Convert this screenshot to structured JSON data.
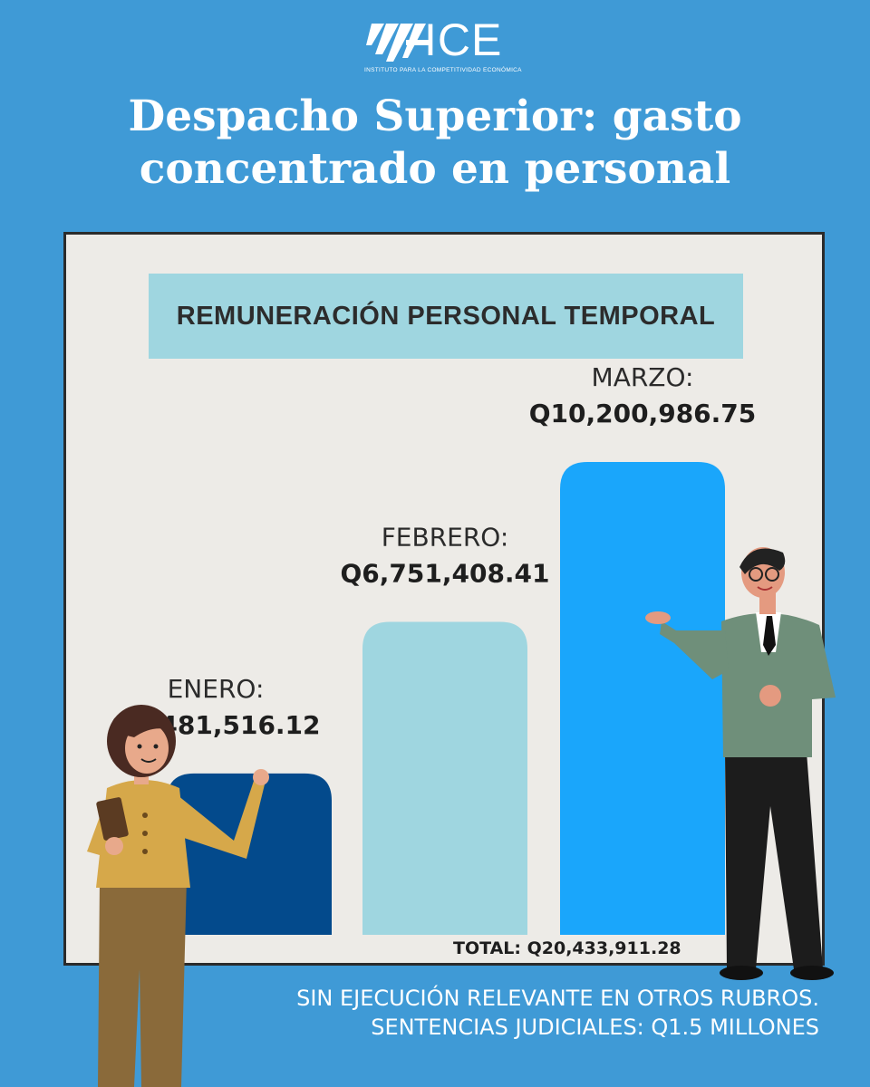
{
  "logo": {
    "name": "ICE",
    "subtitle": "INSTITUTO PARA LA COMPETITIVIDAD ECONÓMICA"
  },
  "headline": {
    "line1": "Despacho Superior: gasto",
    "line2": "concentrado en personal"
  },
  "chart_data": {
    "type": "bar",
    "title": "REMUNERACIÓN PERSONAL TEMPORAL",
    "categories": [
      "ENERO:",
      "FEBRERO:",
      "MARZO:"
    ],
    "values": [
      3481516.12,
      6751408.41,
      10200986.75
    ],
    "value_labels": [
      "Q3,481,516.12",
      "Q6,751,408.41",
      "Q10,200,986.75"
    ],
    "bar_colors": [
      "#034a8c",
      "#9fd6e0",
      "#1aa6fb"
    ],
    "total_label": "TOTAL: Q20,433,911.28",
    "xlabel": "",
    "ylabel": "",
    "grid": false
  },
  "footer": {
    "line1": "SIN EJECUCIÓN RELEVANTE EN OTROS RUBROS.",
    "line2": "SENTENCIAS JUDICIALES: Q1.5 MILLONES"
  },
  "colors": {
    "background": "#3f9ad6",
    "panel": "#edebe7",
    "title_box": "#9fd6e0"
  },
  "illustrations": [
    "woman-presenter-illustration",
    "man-presenter-illustration"
  ]
}
